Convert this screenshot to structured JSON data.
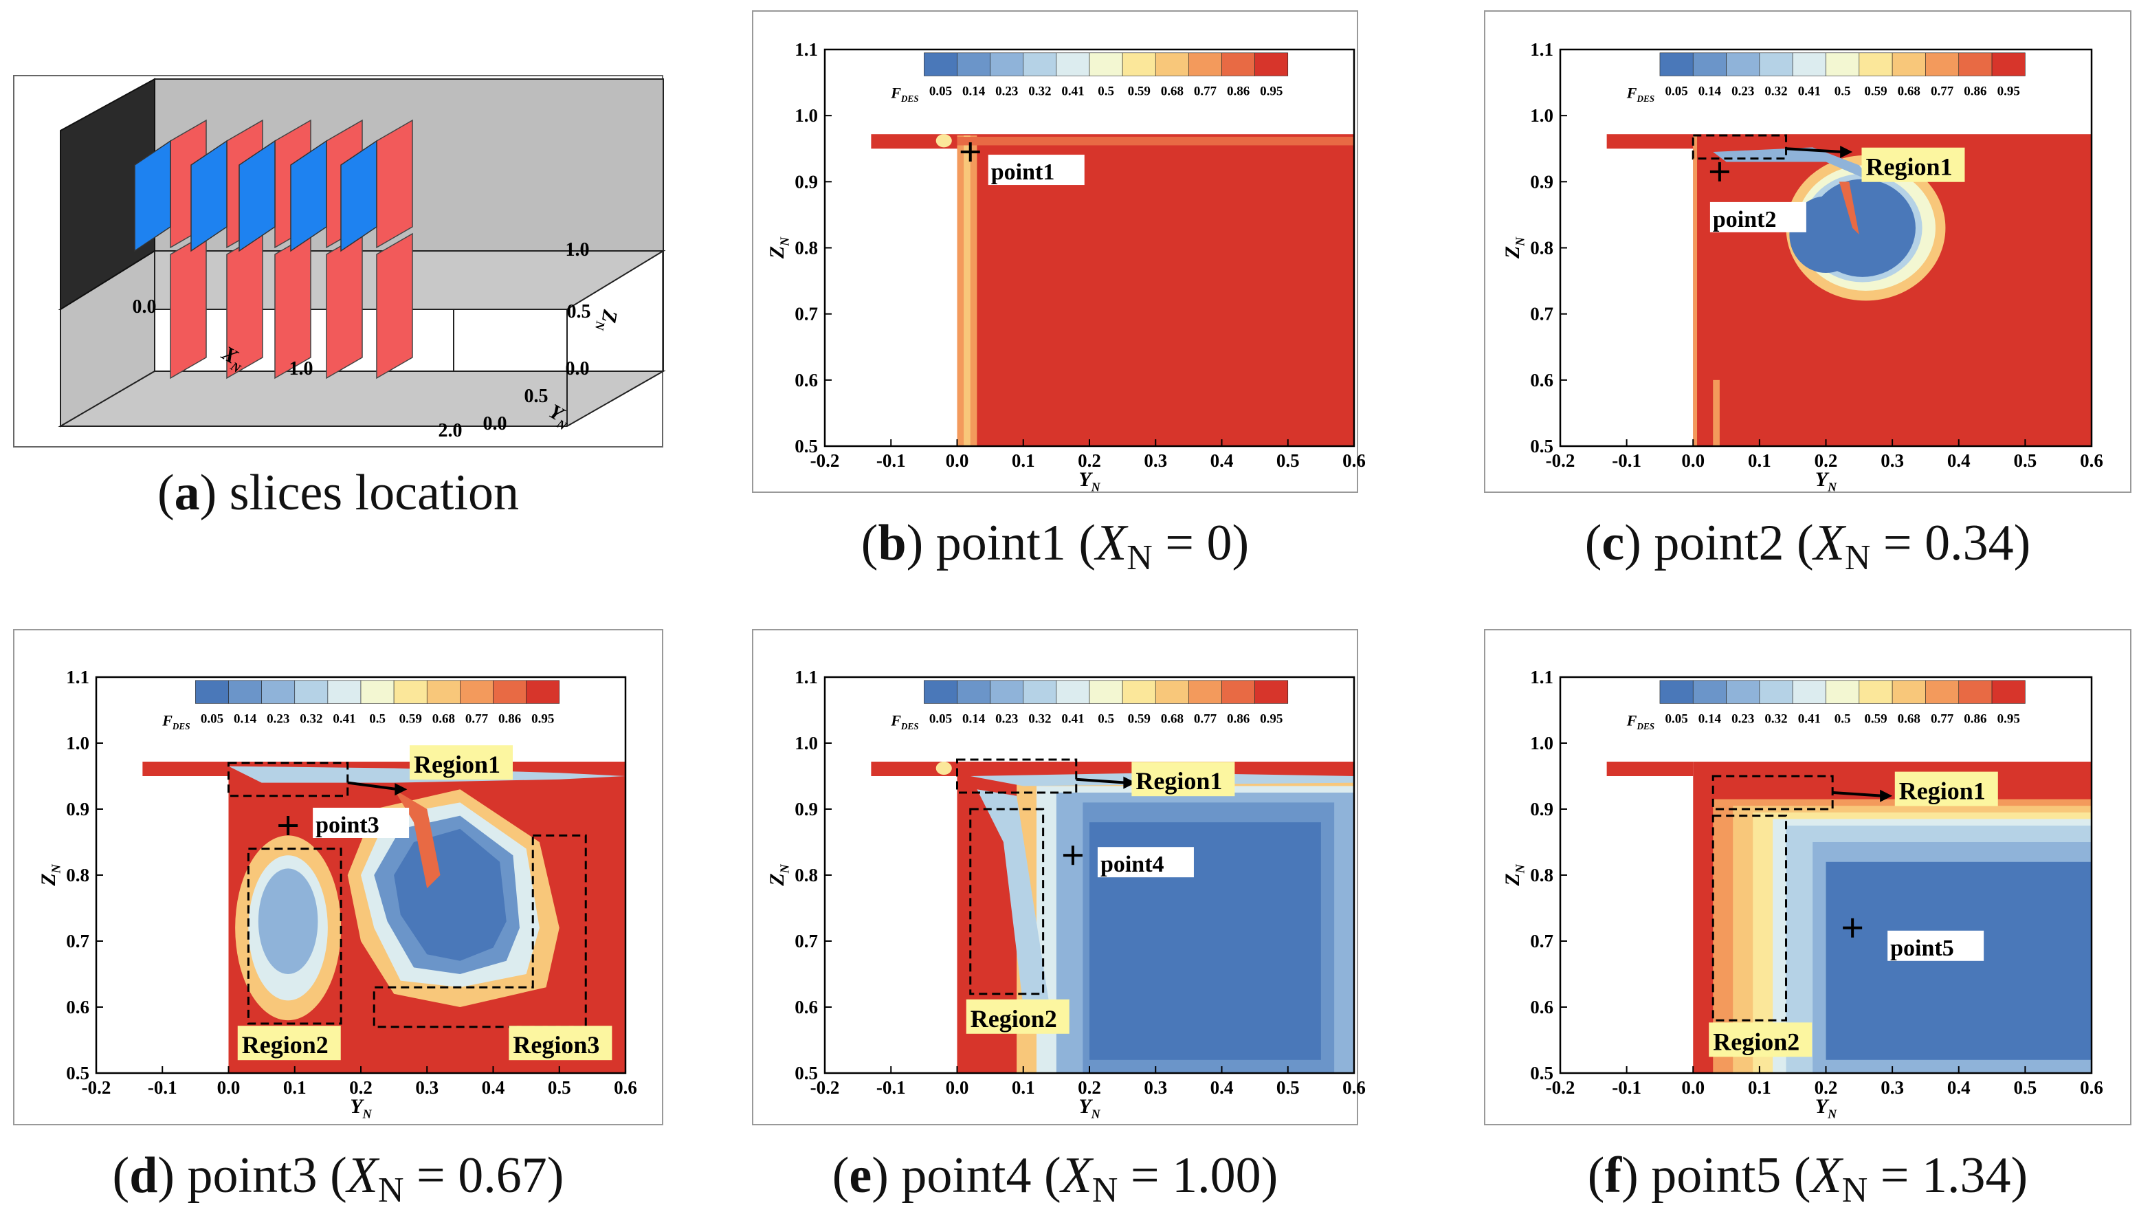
{
  "palette": [
    "#4a78b9",
    "#6b95c9",
    "#8fb3d9",
    "#b5d2e6",
    "#dcecef",
    "#f3f7d2",
    "#fbe79a",
    "#f8c77a",
    "#f39a5c",
    "#e86a44",
    "#d7352b"
  ],
  "panel_a": {
    "caption_letter": "a",
    "caption_text": "slices location",
    "axis": {
      "x_name": "X",
      "x_sub": "N",
      "y_name": "Y",
      "y_sub": "N",
      "z_name": "Z",
      "z_sub": "N"
    },
    "x_ticks": [
      "0.0",
      "1.0",
      "2.0"
    ],
    "y_ticks": [
      "0.0",
      "0.5"
    ],
    "z_ticks": [
      "1.0",
      "0.5",
      "0.0"
    ]
  },
  "chart_data": [
    {
      "type": "heatmap",
      "id": "b",
      "caption_letter": "b",
      "caption_pre": "point1 (",
      "caption_var": "X",
      "caption_sub": "N",
      "caption_post": " = 0)",
      "xlabel": "Y",
      "xlabel_sub": "N",
      "ylabel": "Z",
      "ylabel_sub": "N",
      "xlim": [
        -0.2,
        0.6
      ],
      "ylim": [
        0.5,
        1.1
      ],
      "xticks": [
        "-0.2",
        "-0.1",
        "0.0",
        "0.1",
        "0.2",
        "0.3",
        "0.4",
        "0.5",
        "0.6"
      ],
      "yticks": [
        "0.5",
        "0.6",
        "0.7",
        "0.8",
        "0.9",
        "1.0",
        "1.1"
      ],
      "legend_title": "F",
      "legend_sub": "DES",
      "legend_levels": [
        "0.05",
        "0.14",
        "0.23",
        "0.32",
        "0.41",
        "0.5",
        "0.59",
        "0.68",
        "0.77",
        "0.86",
        "0.95"
      ],
      "points": [
        {
          "label": "point1",
          "y": 0.02,
          "z": 0.945
        }
      ],
      "regions": []
    },
    {
      "type": "heatmap",
      "id": "c",
      "caption_letter": "c",
      "caption_pre": "point2 (",
      "caption_var": "X",
      "caption_sub": "N",
      "caption_post": " = 0.34)",
      "xlabel": "Y",
      "xlabel_sub": "N",
      "ylabel": "Z",
      "ylabel_sub": "N",
      "xlim": [
        -0.2,
        0.6
      ],
      "ylim": [
        0.5,
        1.1
      ],
      "xticks": [
        "-0.2",
        "-0.1",
        "0.0",
        "0.1",
        "0.2",
        "0.3",
        "0.4",
        "0.5",
        "0.6"
      ],
      "yticks": [
        "0.5",
        "0.6",
        "0.7",
        "0.8",
        "0.9",
        "1.0",
        "1.1"
      ],
      "legend_title": "F",
      "legend_sub": "DES",
      "legend_levels": [
        "0.05",
        "0.14",
        "0.23",
        "0.32",
        "0.41",
        "0.5",
        "0.59",
        "0.68",
        "0.77",
        "0.86",
        "0.95"
      ],
      "points": [
        {
          "label": "point2",
          "y": 0.04,
          "z": 0.915
        }
      ],
      "regions": [
        {
          "label": "Region1"
        }
      ]
    },
    {
      "type": "heatmap",
      "id": "d",
      "caption_letter": "d",
      "caption_pre": "point3 (",
      "caption_var": "X",
      "caption_sub": "N",
      "caption_post": " = 0.67)",
      "xlabel": "Y",
      "xlabel_sub": "N",
      "ylabel": "Z",
      "ylabel_sub": "N",
      "xlim": [
        -0.2,
        0.6
      ],
      "ylim": [
        0.5,
        1.1
      ],
      "xticks": [
        "-0.2",
        "-0.1",
        "0.0",
        "0.1",
        "0.2",
        "0.3",
        "0.4",
        "0.5",
        "0.6"
      ],
      "yticks": [
        "0.5",
        "0.6",
        "0.7",
        "0.8",
        "0.9",
        "1.0",
        "1.1"
      ],
      "legend_title": "F",
      "legend_sub": "DES",
      "legend_levels": [
        "0.05",
        "0.14",
        "0.23",
        "0.32",
        "0.41",
        "0.5",
        "0.59",
        "0.68",
        "0.77",
        "0.86",
        "0.95"
      ],
      "points": [
        {
          "label": "point3",
          "y": 0.09,
          "z": 0.875
        }
      ],
      "regions": [
        {
          "label": "Region1"
        },
        {
          "label": "Region2"
        },
        {
          "label": "Region3"
        }
      ]
    },
    {
      "type": "heatmap",
      "id": "e",
      "caption_letter": "e",
      "caption_pre": "point4 (",
      "caption_var": "X",
      "caption_sub": "N",
      "caption_post": " = 1.00)",
      "xlabel": "Y",
      "xlabel_sub": "N",
      "ylabel": "Z",
      "ylabel_sub": "N",
      "xlim": [
        -0.2,
        0.6
      ],
      "ylim": [
        0.5,
        1.1
      ],
      "xticks": [
        "-0.2",
        "-0.1",
        "0.0",
        "0.1",
        "0.2",
        "0.3",
        "0.4",
        "0.5",
        "0.6"
      ],
      "yticks": [
        "0.5",
        "0.6",
        "0.7",
        "0.8",
        "0.9",
        "1.0",
        "1.1"
      ],
      "legend_title": "F",
      "legend_sub": "DES",
      "legend_levels": [
        "0.05",
        "0.14",
        "0.23",
        "0.32",
        "0.41",
        "0.5",
        "0.59",
        "0.68",
        "0.77",
        "0.86",
        "0.95"
      ],
      "points": [
        {
          "label": "point4",
          "y": 0.175,
          "z": 0.83
        }
      ],
      "regions": [
        {
          "label": "Region1"
        },
        {
          "label": "Region2"
        }
      ]
    },
    {
      "type": "heatmap",
      "id": "f",
      "caption_letter": "f",
      "caption_pre": "point5 (",
      "caption_var": "X",
      "caption_sub": "N",
      "caption_post": " = 1.34)",
      "xlabel": "Y",
      "xlabel_sub": "N",
      "ylabel": "Z",
      "ylabel_sub": "N",
      "xlim": [
        -0.2,
        0.6
      ],
      "ylim": [
        0.5,
        1.1
      ],
      "xticks": [
        "-0.2",
        "-0.1",
        "0.0",
        "0.1",
        "0.2",
        "0.3",
        "0.4",
        "0.5",
        "0.6"
      ],
      "yticks": [
        "0.5",
        "0.6",
        "0.7",
        "0.8",
        "0.9",
        "1.0",
        "1.1"
      ],
      "legend_title": "F",
      "legend_sub": "DES",
      "legend_levels": [
        "0.05",
        "0.14",
        "0.23",
        "0.32",
        "0.41",
        "0.5",
        "0.59",
        "0.68",
        "0.77",
        "0.86",
        "0.95"
      ],
      "points": [
        {
          "label": "point5",
          "y": 0.24,
          "z": 0.72
        }
      ],
      "regions": [
        {
          "label": "Region1"
        },
        {
          "label": "Region2"
        }
      ]
    }
  ]
}
